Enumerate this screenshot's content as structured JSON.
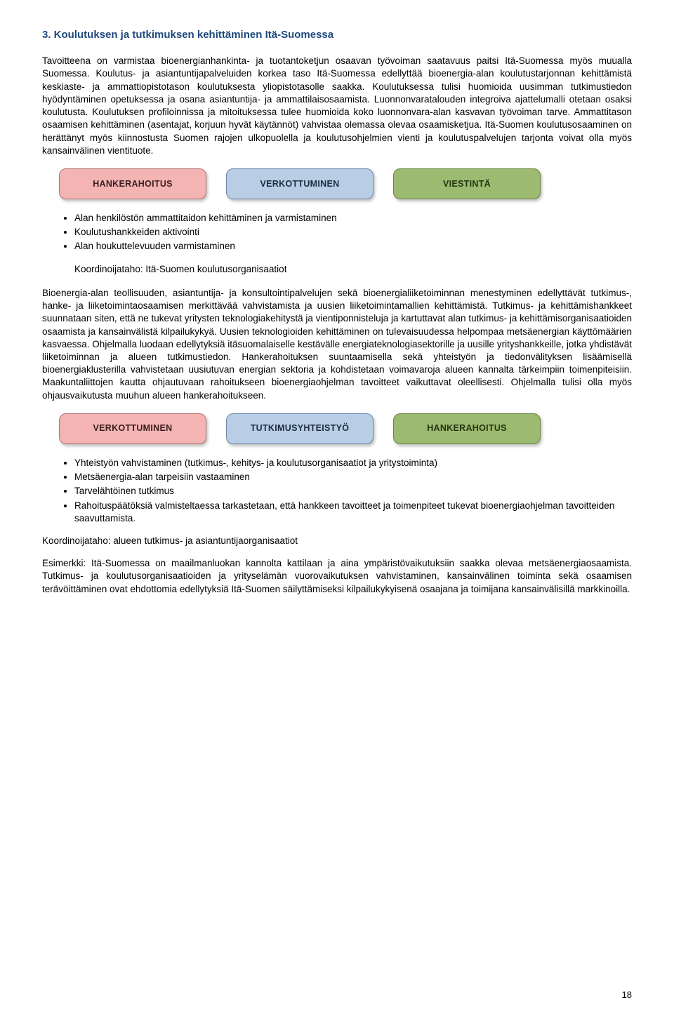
{
  "heading": "3. Koulutuksen ja tutkimuksen kehittäminen Itä-Suomessa",
  "para1": "Tavoitteena on varmistaa bioenergianhankinta- ja tuotantoketjun osaavan työvoiman saatavuus paitsi Itä-Suomessa myös muualla Suomessa. Koulutus- ja asiantuntijapalveluiden korkea taso Itä-Suomessa edellyttää bioenergia-alan koulutustarjonnan kehittämistä keskiaste- ja ammattiopistotason koulutuksesta yliopistotasolle saakka. Koulutuksessa tulisi huomioida uusimman tutkimustiedon hyödyntäminen opetuksessa ja osana asiantuntija- ja ammattilaisosaamista. Luonnonvaratalouden integroiva ajattelumalli otetaan osaksi koulutusta. Koulutuksen profiloinnissa ja mitoituksessa tulee huomioida koko luonnonvara-alan kasvavan työvoiman tarve. Ammattitason osaamisen kehittäminen (asentajat, korjuun hyvät käytännöt) vahvistaa olemassa olevaa osaamisketjua. Itä-Suomen koulutusosaaminen on herättänyt myös kiinnostusta Suomen rajojen ulkopuolella ja koulutusohjelmien vienti ja koulutuspalvelujen tarjonta voivat olla myös kansainvälinen vientituote.",
  "pills_row1": [
    {
      "label": "HANKERAHOITUS",
      "class": "pill-pink"
    },
    {
      "label": "VERKOTTUMINEN",
      "class": "pill-blue"
    },
    {
      "label": "VIESTINTÄ",
      "class": "pill-green"
    }
  ],
  "bullets1": [
    "Alan henkilöstön ammattitaidon kehittäminen ja varmistaminen",
    "Koulutushankkeiden aktivointi",
    "Alan houkuttelevuuden varmistaminen"
  ],
  "coord1": "Koordinoijataho: Itä-Suomen koulutusorganisaatiot",
  "para2": "Bioenergia-alan teollisuuden, asiantuntija- ja konsultointipalvelujen sekä bioenergialiiketoiminnan menestyminen edellyttävät tutkimus-, hanke- ja liiketoimintaosaamisen merkittävää vahvistamista ja uusien liiketoimintamallien kehittämistä. Tutkimus- ja kehittämishankkeet suunnataan siten, että ne tukevat yritysten teknologiakehitystä ja vientiponnisteluja ja kartuttavat alan tutkimus- ja kehittämisorganisaatioiden osaamista ja kansainvälistä kilpailukykyä. Uusien teknologioiden kehittäminen on tulevaisuudessa helpompaa metsäenergian käyttömäärien kasvaessa. Ohjelmalla luodaan edellytyksiä itäsuomalaiselle kestävälle energiateknologiasektorille ja uusille yrityshankkeille, jotka yhdistävät liiketoiminnan ja alueen tutkimustiedon. Hankerahoituksen suuntaamisella sekä yhteistyön ja tiedonvälityksen lisäämisellä bioenergiaklusterilla vahvistetaan uusiutuvan energian sektoria ja kohdistetaan voimavaroja alueen kannalta tärkeimpiin toimenpiteisiin. Maakuntaliittojen kautta ohjautuvaan rahoitukseen bioenergiaohjelman tavoitteet vaikuttavat oleellisesti. Ohjelmalla tulisi olla myös ohjausvaikutusta muuhun alueen hankerahoitukseen.",
  "pills_row2": [
    {
      "label": "VERKOTTUMINEN",
      "class": "pill-pink"
    },
    {
      "label": "TUTKIMUSYHTEISTYÖ",
      "class": "pill-blue"
    },
    {
      "label": "HANKERAHOITUS",
      "class": "pill-green"
    }
  ],
  "bullets2": [
    "Yhteistyön vahvistaminen (tutkimus-, kehitys- ja koulutusorganisaatiot ja yritystoiminta)",
    "Metsäenergia-alan tarpeisiin vastaaminen",
    "Tarvelähtöinen tutkimus",
    "Rahoituspäätöksiä valmisteltaessa tarkastetaan, että hankkeen tavoitteet ja toimenpiteet tukevat bioenergiaohjelman tavoitteiden saavuttamista."
  ],
  "coord2": "Koordinoijataho: alueen tutkimus- ja asiantuntijaorganisaatiot",
  "para3": "Esimerkki: Itä-Suomessa on maailmanluokan kannolta kattilaan ja aina ympäristövaikutuksiin saakka olevaa metsäenergiaosaamista. Tutkimus- ja koulutusorganisaatioiden ja yrityselämän vuorovaikutuksen vahvistaminen, kansainvälinen toiminta sekä osaamisen terävöittäminen ovat ehdottomia edellytyksiä Itä-Suomen säilyttämiseksi kilpailukykyisenä osaajana ja toimijana kansainvälisillä markkinoilla.",
  "page_number": "18",
  "colors": {
    "heading": "#1f497d",
    "pill_pink_bg": "#f4b4b4",
    "pill_pink_border": "#b07272",
    "pill_blue_bg": "#b9cde5",
    "pill_blue_border": "#6a87ab",
    "pill_green_bg": "#9dbb70",
    "pill_green_border": "#6a843f",
    "background": "#ffffff",
    "text": "#000000"
  }
}
